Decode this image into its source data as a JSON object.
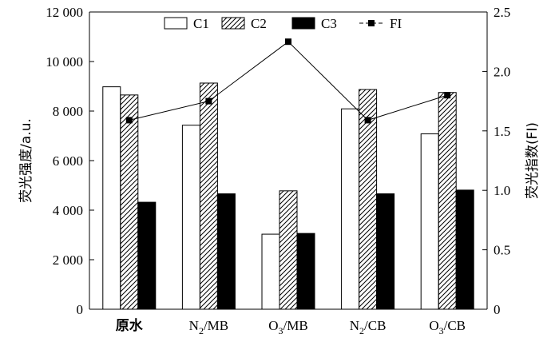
{
  "chart_data": {
    "type": "bar",
    "categories": [
      "原水",
      "N₂/MB",
      "O₃/MB",
      "N₂/CB",
      "O₃/CB"
    ],
    "category_display": [
      {
        "main": "原水",
        "sub": "",
        "rest": ""
      },
      {
        "main": "N",
        "sub": "2",
        "rest": "/MB"
      },
      {
        "main": "O",
        "sub": "3",
        "rest": "/MB"
      },
      {
        "main": "N",
        "sub": "2",
        "rest": "/CB"
      },
      {
        "main": "O",
        "sub": "3",
        "rest": "/CB"
      }
    ],
    "series": [
      {
        "name": "C1",
        "values": [
          8980,
          7430,
          3030,
          8090,
          7080
        ],
        "style": "hollow"
      },
      {
        "name": "C2",
        "values": [
          8650,
          9130,
          4780,
          8870,
          8750
        ],
        "style": "hatched"
      },
      {
        "name": "C3",
        "values": [
          4320,
          4660,
          3060,
          4660,
          4810
        ],
        "style": "solid"
      }
    ],
    "line_series": {
      "name": "FI",
      "values": [
        1.59,
        1.75,
        2.25,
        1.59,
        1.8
      ],
      "axis": "right"
    },
    "ylabel": "荧光强度/a.u.",
    "y2label": "荧光指数(FI)",
    "xlabel": "",
    "ylim": [
      0,
      12000
    ],
    "y2lim": [
      0,
      2.5
    ],
    "y_ticks": [
      0,
      2000,
      4000,
      6000,
      8000,
      10000,
      12000
    ],
    "y_tick_labels": [
      "0",
      "2 000",
      "4 000",
      "6 000",
      "8 000",
      "10 000",
      "12 000"
    ],
    "y2_ticks": [
      0,
      0.5,
      1.0,
      1.5,
      2.0,
      2.5
    ],
    "y2_tick_labels": [
      "0",
      "0.5",
      "1.0",
      "1.5",
      "2.0",
      "2.5"
    ],
    "legend_position": "top-center",
    "grid": false,
    "colors": {
      "bar_fill_solid": "#000000",
      "bar_outline": "#000000",
      "hollow_fill": "#ffffff",
      "line": "#000000"
    }
  }
}
